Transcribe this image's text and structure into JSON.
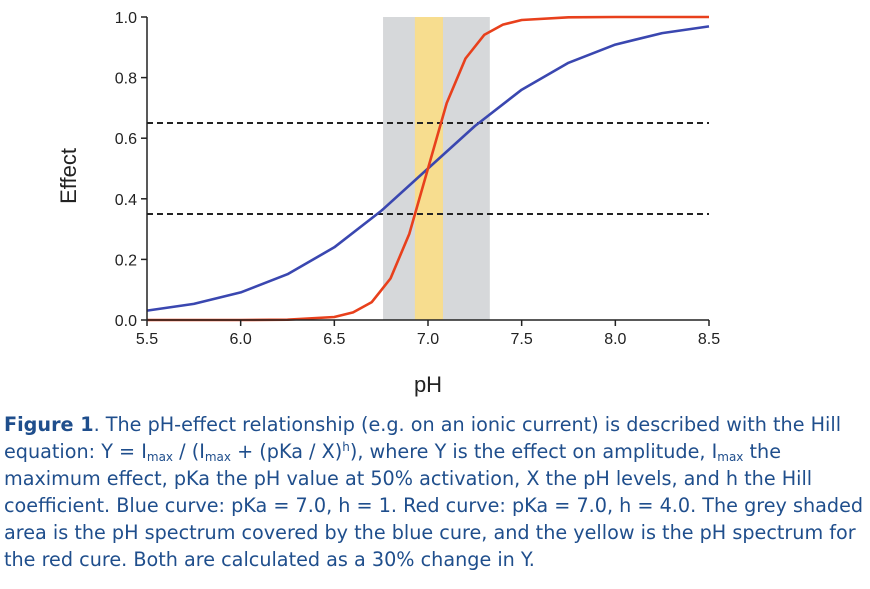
{
  "chart_data": {
    "type": "line",
    "xlabel": "pH",
    "ylabel": "Effect",
    "xlim": [
      5.5,
      8.5
    ],
    "ylim": [
      0,
      1.0
    ],
    "x_ticks": [
      "5.5",
      "6.0",
      "6.5",
      "7.0",
      "7.5",
      "8.0",
      "8.5"
    ],
    "y_ticks": [
      "0.0",
      "0.2",
      "0.4",
      "0.6",
      "0.8",
      "1.0"
    ],
    "grid": false,
    "series": [
      {
        "color": "#3a47b0",
        "x": [
          5.5,
          5.75,
          6.0,
          6.25,
          6.5,
          6.75,
          7.0,
          7.25,
          7.5,
          7.75,
          8.0,
          8.25,
          8.5
        ],
        "values": [
          0.031,
          0.053,
          0.091,
          0.151,
          0.24,
          0.36,
          0.5,
          0.64,
          0.76,
          0.849,
          0.909,
          0.947,
          0.969
        ]
      },
      {
        "color": "#e8401c",
        "x": [
          5.5,
          6.0,
          6.25,
          6.5,
          6.6,
          6.7,
          6.8,
          6.9,
          7.0,
          7.1,
          7.2,
          7.3,
          7.4,
          7.5,
          7.75,
          8.0,
          8.5
        ],
        "values": [
          0.0,
          0.0001,
          0.001,
          0.01,
          0.025,
          0.059,
          0.137,
          0.284,
          0.5,
          0.716,
          0.863,
          0.941,
          0.975,
          0.99,
          0.999,
          1.0,
          1.0
        ]
      }
    ],
    "shaded_regions": [
      {
        "x_range": [
          6.76,
          7.33
        ],
        "color": "#d6d8da"
      },
      {
        "x_range": [
          6.93,
          7.08
        ],
        "color": "#f7dd8f"
      }
    ],
    "reference_lines": [
      {
        "y": 0.65,
        "style": "dashed"
      },
      {
        "y": 0.35,
        "style": "dashed"
      }
    ]
  },
  "caption": {
    "label": "Figure 1",
    "text_1": ". The pH-effect relationship (e.g. on an ionic current) is described with the Hill equation: Y = I",
    "sub_1": "max",
    "text_2": " / (I",
    "sub_2": "max",
    "text_3": " + (pKa / X)",
    "sup_1": "h",
    "text_4": "), where Y is the effect on amplitude, I",
    "sub_3": "max",
    "text_5": " the maximum effect, pKa the pH value at 50% activation, X the pH levels, and h the Hill coefficient. Blue curve: pKa = 7.0, h = 1. Red curve: pKa = 7.0, h = 4.0. The grey shaded area is the pH spectrum covered by the blue cure, and the yellow is the pH spectrum for the red cure. Both are calculated as a 30% change in Y."
  }
}
